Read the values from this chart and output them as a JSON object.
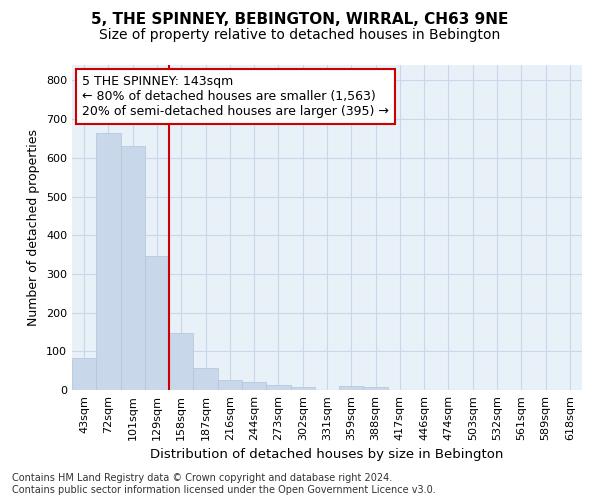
{
  "title": "5, THE SPINNEY, BEBINGTON, WIRRAL, CH63 9NE",
  "subtitle": "Size of property relative to detached houses in Bebington",
  "xlabel": "Distribution of detached houses by size in Bebington",
  "ylabel": "Number of detached properties",
  "bar_labels": [
    "43sqm",
    "72sqm",
    "101sqm",
    "129sqm",
    "158sqm",
    "187sqm",
    "216sqm",
    "244sqm",
    "273sqm",
    "302sqm",
    "331sqm",
    "359sqm",
    "388sqm",
    "417sqm",
    "446sqm",
    "474sqm",
    "503sqm",
    "532sqm",
    "561sqm",
    "589sqm",
    "618sqm"
  ],
  "bar_values": [
    82,
    663,
    630,
    347,
    148,
    57,
    25,
    20,
    12,
    7,
    0,
    10,
    8,
    0,
    0,
    0,
    0,
    0,
    0,
    0,
    0
  ],
  "bar_color": "#c8d8ea",
  "bar_edgecolor": "#b0c4d8",
  "vline_x": 3.5,
  "vline_color": "#cc0000",
  "annotation_text": "5 THE SPINNEY: 143sqm\n← 80% of detached houses are smaller (1,563)\n20% of semi-detached houses are larger (395) →",
  "annotation_box_facecolor": "white",
  "annotation_box_edgecolor": "#cc0000",
  "ylim": [
    0,
    840
  ],
  "yticks": [
    0,
    100,
    200,
    300,
    400,
    500,
    600,
    700,
    800
  ],
  "grid_color": "#c8d8ea",
  "bg_color": "#e8f0f8",
  "footer_text": "Contains HM Land Registry data © Crown copyright and database right 2024.\nContains public sector information licensed under the Open Government Licence v3.0.",
  "title_fontsize": 11,
  "subtitle_fontsize": 10,
  "xlabel_fontsize": 9.5,
  "ylabel_fontsize": 9,
  "tick_fontsize": 8,
  "annotation_fontsize": 9,
  "footer_fontsize": 7
}
